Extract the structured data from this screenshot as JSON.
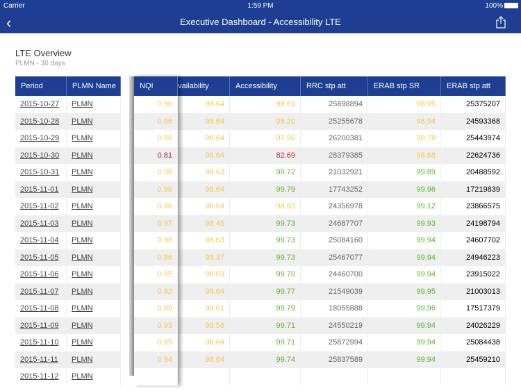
{
  "status_bar": {
    "carrier": "Carrier",
    "time": "1:59 PM",
    "battery": "100%"
  },
  "nav": {
    "title": "Executive Dashboard - Accessibility LTE",
    "back_icon": "chevron-left-icon",
    "share_icon": "share-icon"
  },
  "section": {
    "title": "LTE Overview",
    "subtitle": "PLMN - 30 days"
  },
  "colors": {
    "brand": "#1d3e92",
    "yellow": "#f2c94c",
    "green": "#5cb531",
    "red": "#c0223a"
  },
  "columns": [
    "Period",
    "PLMN Name",
    "NQI",
    "Availability",
    "Accessibility",
    "RRC stp att",
    "ERAB stp SR",
    "ERAB stp att"
  ],
  "visible_header_fragment": "ailability",
  "rows": [
    [
      "2015-10-27",
      "PLMN",
      "0.96",
      "98.64",
      "98.61",
      "25898894",
      "98.95",
      "25375207"
    ],
    [
      "2015-10-28",
      "PLMN",
      "0.96",
      "98.64",
      "98.20",
      "25255678",
      "98.94",
      "24593368"
    ],
    [
      "2015-10-29",
      "PLMN",
      "0.96",
      "98.64",
      "97.96",
      "26200381",
      "98.78",
      "25443974"
    ],
    [
      "2015-10-30",
      "PLMN",
      "0.81",
      "98.64",
      "82.69",
      "28379385",
      "98.68",
      "22624736"
    ],
    [
      "2015-10-31",
      "PLMN",
      "0.98",
      "98.63",
      "99.72",
      "21032921",
      "99.89",
      "20488592"
    ],
    [
      "2015-11-01",
      "PLMN",
      "0.98",
      "98.64",
      "99.79",
      "17743252",
      "99.96",
      "17219839"
    ],
    [
      "2015-11-02",
      "PLMN",
      "0.96",
      "98.64",
      "98.93",
      "24356978",
      "99.12",
      "23866575"
    ],
    [
      "2015-11-03",
      "PLMN",
      "0.97",
      "98.45",
      "99.73",
      "24687707",
      "99.93",
      "24198794"
    ],
    [
      "2015-11-04",
      "PLMN",
      "0.98",
      "98.63",
      "99.73",
      "25084160",
      "99.94",
      "24607702"
    ],
    [
      "2015-11-05",
      "PLMN",
      "0.96",
      "98.37",
      "99.73",
      "25467077",
      "99.94",
      "24946223"
    ],
    [
      "2015-11-06",
      "PLMN",
      "0.95",
      "98.63",
      "99.70",
      "24460700",
      "99.94",
      "23915022"
    ],
    [
      "2015-11-07",
      "PLMN",
      "0.92",
      "98.64",
      "99.77",
      "21549039",
      "99.95",
      "21003013"
    ],
    [
      "2015-11-08",
      "PLMN",
      "0.89",
      "98.61",
      "99.79",
      "18055888",
      "99.96",
      "17517379"
    ],
    [
      "2015-11-09",
      "PLMN",
      "0.93",
      "98.58",
      "99.71",
      "24550219",
      "99.94",
      "24026229"
    ],
    [
      "2015-11-10",
      "PLMN",
      "0.95",
      "98.64",
      "99.71",
      "25872994",
      "99.94",
      "25084438"
    ],
    [
      "2015-11-11",
      "PLMN",
      "0.94",
      "98.64",
      "99.74",
      "25837589",
      "99.94",
      "25459210"
    ],
    [
      "2015-11-12",
      "PLMN",
      "",
      "",
      "",
      "",
      "",
      ""
    ]
  ],
  "cell_status": [
    [
      "y",
      "y",
      "y",
      "",
      "y"
    ],
    [
      "y",
      "y",
      "y",
      "",
      "y"
    ],
    [
      "y",
      "y",
      "y",
      "",
      "y"
    ],
    [
      "r",
      "y",
      "r",
      "",
      "y"
    ],
    [
      "y",
      "y",
      "g",
      "",
      "g"
    ],
    [
      "y",
      "y",
      "g",
      "",
      "g"
    ],
    [
      "y",
      "y",
      "y",
      "",
      "g"
    ],
    [
      "y",
      "y",
      "g",
      "",
      "g"
    ],
    [
      "y",
      "y",
      "g",
      "",
      "g"
    ],
    [
      "y",
      "y",
      "g",
      "",
      "g"
    ],
    [
      "y",
      "y",
      "g",
      "",
      "g"
    ],
    [
      "y",
      "y",
      "g",
      "",
      "g"
    ],
    [
      "y",
      "y",
      "g",
      "",
      "g"
    ],
    [
      "y",
      "y",
      "g",
      "",
      "g"
    ],
    [
      "y",
      "y",
      "g",
      "",
      "g"
    ],
    [
      "y",
      "y",
      "g",
      "",
      "g"
    ],
    [
      "",
      "",
      "",
      "",
      ""
    ]
  ]
}
